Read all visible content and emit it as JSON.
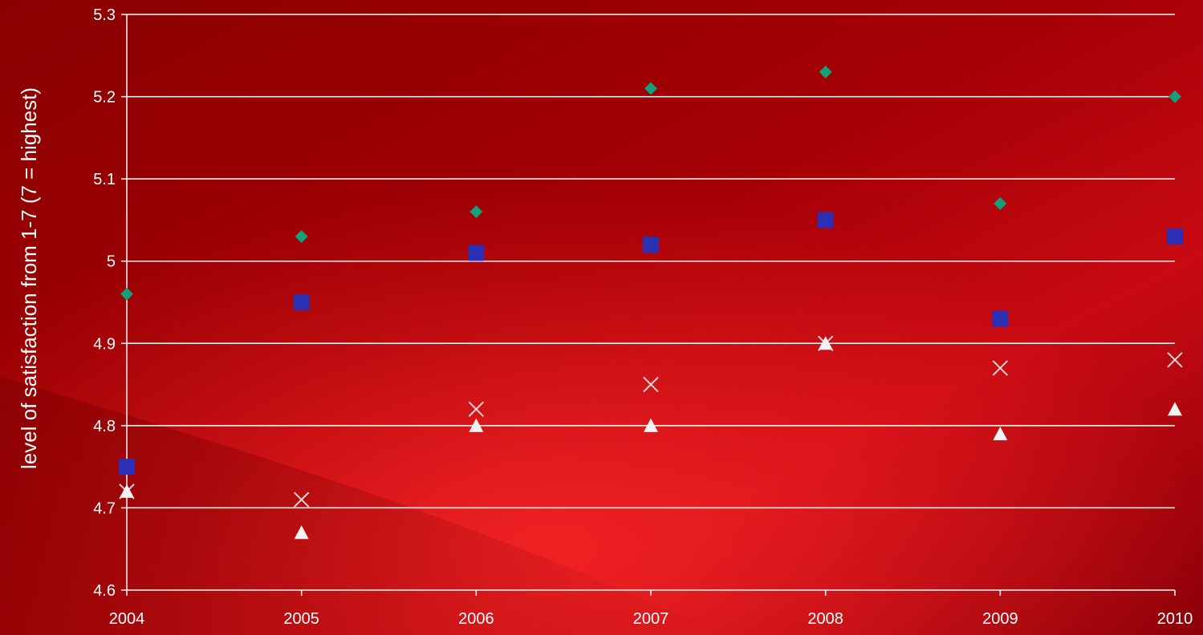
{
  "chart_data": {
    "type": "scatter",
    "title": "",
    "xlabel": "",
    "ylabel": "level of satisfaction from 1-7  (7 = highest)",
    "x": [
      2004,
      2005,
      2006,
      2007,
      2008,
      2009,
      2010
    ],
    "x_tick_labels": [
      "2004",
      "2005",
      "2006",
      "2007",
      "2008",
      "2009",
      "2010"
    ],
    "ylim": [
      4.6,
      5.3
    ],
    "y_ticks": [
      4.6,
      4.7,
      4.8,
      4.9,
      5.0,
      5.1,
      5.2,
      5.3
    ],
    "y_tick_labels": [
      "4.6",
      "4.7",
      "4.8",
      "4.9",
      "5",
      "5.1",
      "5.2",
      "5.3"
    ],
    "grid": "horizontal",
    "legend": "none",
    "series": [
      {
        "marker": "diamond",
        "color": "#13a07a",
        "values": [
          4.96,
          5.03,
          5.06,
          5.21,
          5.23,
          5.07,
          5.2
        ]
      },
      {
        "marker": "square",
        "color": "#2a2fb4",
        "values": [
          4.75,
          4.95,
          5.01,
          5.02,
          5.05,
          4.93,
          5.03
        ]
      },
      {
        "marker": "cross",
        "color": "#e9d8d8",
        "values": [
          4.72,
          4.71,
          4.82,
          4.85,
          4.9,
          4.87,
          4.88
        ]
      },
      {
        "marker": "triangle",
        "color": "#f3f3f3",
        "values": [
          4.72,
          4.67,
          4.8,
          4.8,
          4.9,
          4.79,
          4.82
        ]
      }
    ]
  }
}
